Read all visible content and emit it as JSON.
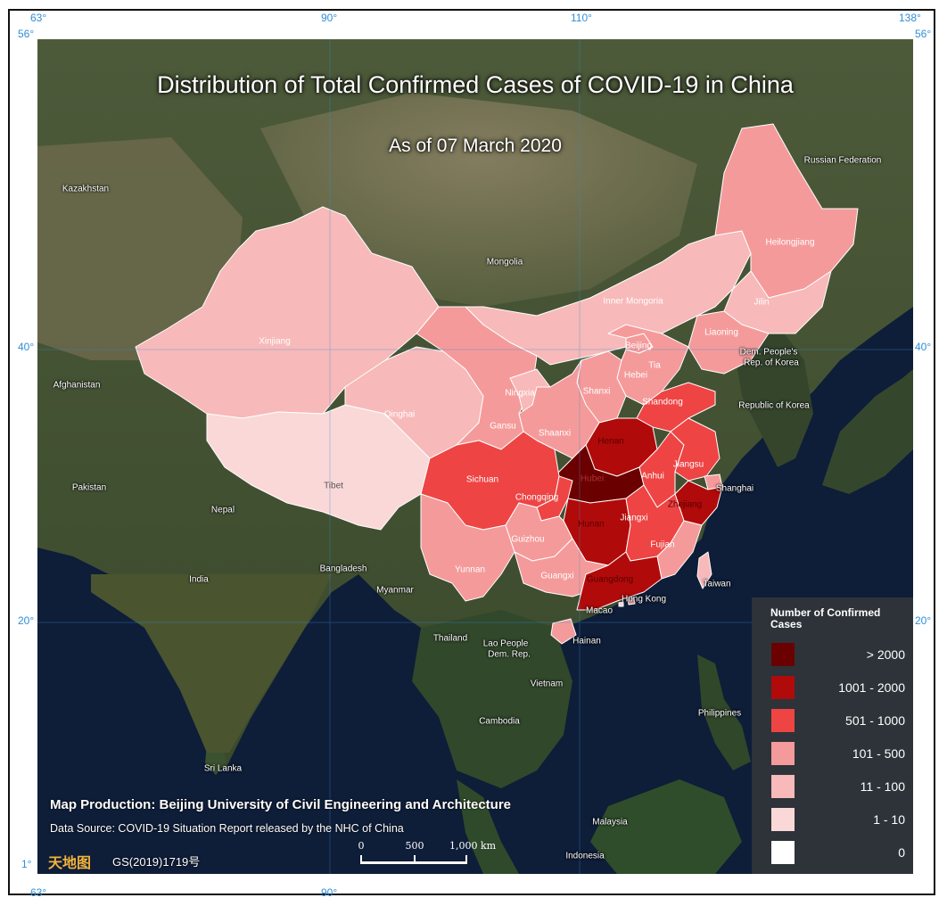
{
  "title": "Distribution of Total Confirmed Cases of COVID-19 in China",
  "subtitle": "As of 07 March 2020",
  "graticule": {
    "top_lon": [
      "63°",
      "90°",
      "110°",
      "138°"
    ],
    "bottom_lon": [
      "63°",
      "90°"
    ],
    "left_lat": [
      "56°",
      "40°",
      "20°",
      "1°"
    ],
    "right_lat": [
      "56°",
      "40°",
      "20°"
    ]
  },
  "legend": {
    "title": "Number of Confirmed Cases",
    "classes": [
      {
        "label": "> 2000",
        "color": "#6b0000"
      },
      {
        "label": "1001 - 2000",
        "color": "#b10a0a"
      },
      {
        "label": "501 - 1000",
        "color": "#ee4444"
      },
      {
        "label": "101 - 500",
        "color": "#f59a9a"
      },
      {
        "label": "11 - 100",
        "color": "#f7b9b9"
      },
      {
        "label": "1 - 10",
        "color": "#fad8d8"
      },
      {
        "label": "0",
        "color": "#ffffff"
      }
    ]
  },
  "provinces": {
    "Xinjiang": "11 - 100",
    "Tibet": "1 - 10",
    "Qinghai": "11 - 100",
    "Gansu": "101 - 500",
    "Ningxia": "11 - 100",
    "Inner Mongoria": "11 - 100",
    "Heilongjiang": "101 - 500",
    "Jilin": "11 - 100",
    "Liaoning": "101 - 500",
    "Beijing": "101 - 500",
    "Tianjin": "101 - 500",
    "Hebei": "101 - 500",
    "Shanxi": "101 - 500",
    "Shaanxi": "101 - 500",
    "Shandong": "501 - 1000",
    "Henan": "1001 - 2000",
    "Hubei": "> 2000",
    "Anhui": "501 - 1000",
    "Jiangsu": "501 - 1000",
    "Shanghai": "101 - 500",
    "Zhejiang": "1001 - 2000",
    "Sichuan": "501 - 1000",
    "Chongqing": "501 - 1000",
    "Hunan": "1001 - 2000",
    "Jiangxi": "501 - 1000",
    "Guizhou": "101 - 500",
    "Yunnan": "101 - 500",
    "Guangxi": "101 - 500",
    "Guangdong": "1001 - 2000",
    "Fujian": "101 - 500",
    "Hainan": "101 - 500",
    "Taiwan": "11 - 100",
    "Hong Kong": "101 - 500",
    "Macao": "1 - 10"
  },
  "labels": {
    "countries": [
      "Kazakhstan",
      "Russian Federation",
      "Mongolia",
      "Afghanistan",
      "Pakistan",
      "Nepal",
      "India",
      "Bangladesh",
      "Myanmar",
      "Thailand",
      "Lao People",
      "Dem. Rep.",
      "Vietnam",
      "Cambodia",
      "Philippines",
      "Sri Lanka",
      "Malaysia",
      "Indonesia",
      "Dem. People's",
      "Rep. of Korea",
      "Republic of Korea"
    ],
    "provinces": [
      "Xinjiang",
      "Tibet",
      "Qinghai",
      "Gansu",
      "Ningxia",
      "Inner Mongoria",
      "Heilongjiang",
      "Jilin",
      "Liaoning",
      "Beijing",
      "Tia",
      "Hebei",
      "Shanxi",
      "Shaanxi",
      "Shandong",
      "Henan",
      "Hubei",
      "Anhui",
      "Jiangsu",
      "Shanghai",
      "Zhejiang",
      "Sichuan",
      "Chongqing",
      "Hunan",
      "Jiangxi",
      "Guizhou",
      "Yunnan",
      "Guangxi",
      "Guangdong",
      "Fujian",
      "Hainan",
      "Taiwan",
      "Hong Kong",
      "Macao"
    ]
  },
  "credits": {
    "production": "Map Production: Beijing University of Civil Engineering and Architecture",
    "source": "Data Source: COVID-19 Situation Report released by the NHC of China",
    "logo_text": "天地图",
    "approval": "GS(2019)1719号"
  },
  "scale_bar": {
    "ticks": [
      "0",
      "500",
      "1,000 km"
    ]
  },
  "colors": {
    "sea": "#0e1d38",
    "land": "#3f4d33",
    "desert": "#8f8566",
    "legend_bg": "#2d3338",
    "graticule": "#2f8fd8"
  }
}
